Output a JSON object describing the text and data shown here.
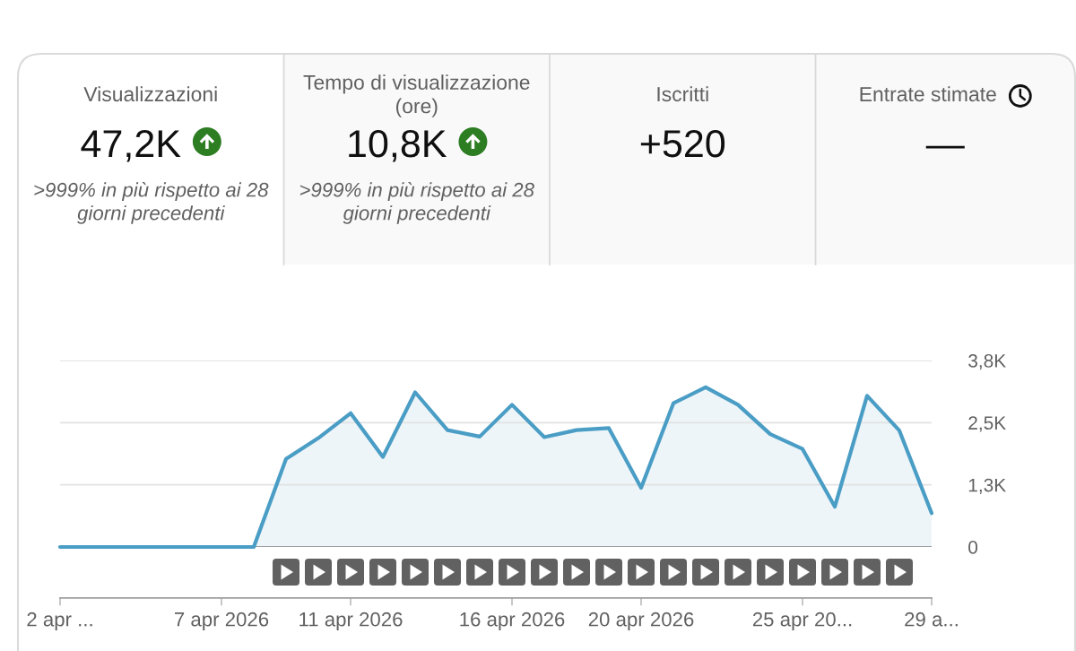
{
  "chart_data": [
    {
      "type": "other",
      "title": "Visualizzazioni",
      "annotations": [
        "47,2K",
        ">999% in più rispetto ai 28 giorni precedenti"
      ]
    },
    {
      "type": "other",
      "title": "Tempo di visualizzazione (ore)",
      "annotations": [
        "10,8K",
        ">999% in più rispetto ai 28 giorni precedenti"
      ]
    },
    {
      "type": "other",
      "title": "Iscritti",
      "annotations": [
        "+520"
      ]
    },
    {
      "type": "other",
      "title": "Entrate stimate",
      "annotations": [
        "—"
      ]
    },
    {
      "type": "area",
      "x": [
        "2026-04-02",
        "2026-04-03",
        "2026-04-04",
        "2026-04-05",
        "2026-04-06",
        "2026-04-07",
        "2026-04-08",
        "2026-04-09",
        "2026-04-10",
        "2026-04-11",
        "2026-04-12",
        "2026-04-13",
        "2026-04-14",
        "2026-04-15",
        "2026-04-16",
        "2026-04-17",
        "2026-04-18",
        "2026-04-19",
        "2026-04-20",
        "2026-04-21",
        "2026-04-22",
        "2026-04-23",
        "2026-04-24",
        "2026-04-25",
        "2026-04-26",
        "2026-04-27",
        "2026-04-28",
        "2026-04-29"
      ],
      "series": [
        {
          "color": "#4a9dc5",
          "values": [
            0,
            0,
            0,
            0,
            0,
            0,
            0,
            1770,
            2190,
            2690,
            1810,
            3110,
            2350,
            2220,
            2860,
            2210,
            2350,
            2390,
            1190,
            2890,
            3210,
            2860,
            2270,
            1970,
            810,
            3040,
            2340,
            680
          ]
        }
      ],
      "xlim": [
        "2026-04-02",
        "2026-04-29"
      ],
      "xticks": [
        {
          "value": "2026-04-02",
          "label": "2 apr ..."
        },
        {
          "value": "2026-04-07",
          "label": "7 apr 2026"
        },
        {
          "value": "2026-04-11",
          "label": "11 apr 2026"
        },
        {
          "value": "2026-04-16",
          "label": "16 apr 2026"
        },
        {
          "value": "2026-04-20",
          "label": "20 apr 2026"
        },
        {
          "value": "2026-04-25",
          "label": "25 apr 20..."
        },
        {
          "value": "2026-04-29",
          "label": "29 a..."
        }
      ],
      "ylim": [
        0,
        3750
      ],
      "yticks": [
        0,
        {
          "value": 1250,
          "label": "1,3K"
        },
        {
          "value": 2500,
          "label": "2,5K"
        },
        {
          "value": 3750,
          "label": "3,8K"
        }
      ],
      "grid": "y"
    }
  ]
}
